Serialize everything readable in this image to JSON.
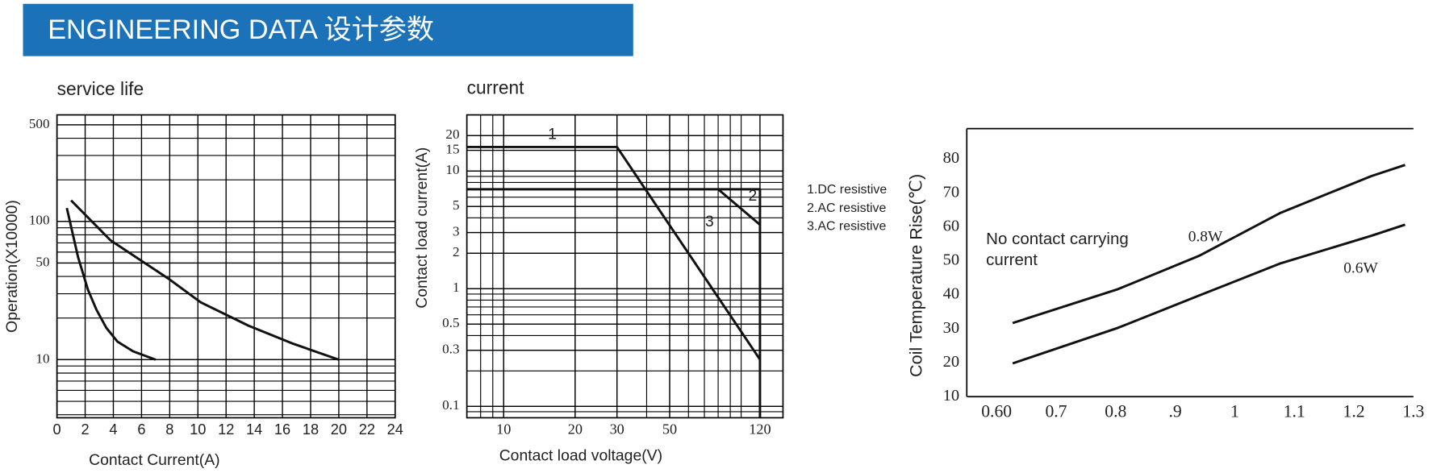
{
  "header": {
    "title": "ENGINEERING DATA 设计参数"
  },
  "chart_data": [
    {
      "type": "line",
      "title": "service life",
      "xlabel": "Contact Current(A)",
      "ylabel": "Operation(X10000)",
      "xscale": "linear",
      "yscale": "log",
      "xlim": [
        0,
        24
      ],
      "ylim": [
        3.8,
        590
      ],
      "xticks": [
        0,
        2,
        4,
        6,
        8,
        10,
        12,
        14,
        16,
        18,
        20,
        22,
        24
      ],
      "yticks": [
        10,
        50,
        100,
        500
      ],
      "grid": true,
      "minor_grid": true,
      "series": [
        {
          "color": "#111111",
          "x": [
            0.7,
            1.5,
            2.2,
            2.8,
            3.5,
            4.3,
            5.4,
            7
          ],
          "values": [
            125,
            55,
            32,
            23,
            17,
            13.5,
            11.5,
            10
          ]
        },
        {
          "color": "#111111",
          "x": [
            1,
            3.8,
            8,
            10.2,
            13.6,
            16.8,
            20
          ],
          "values": [
            142,
            73,
            38,
            26,
            17.6,
            13,
            10
          ]
        }
      ]
    },
    {
      "type": "line",
      "title": "current",
      "xlabel": "Contact load voltage(V)",
      "ylabel": "Contact load current(A)",
      "xscale": "log",
      "yscale": "log",
      "xlim": [
        7,
        150
      ],
      "ylim": [
        0.08,
        30
      ],
      "xticks": [
        10,
        20,
        30,
        50,
        120
      ],
      "yticks": [
        0.1,
        0.3,
        0.5,
        1,
        2,
        3,
        5,
        10,
        15,
        20
      ],
      "grid": true,
      "minor_grid": true,
      "legend": "right",
      "annotations": [
        "1",
        "2",
        "3"
      ],
      "series": [
        {
          "name": "1.DC resistive",
          "color": "#111111",
          "x": [
            7,
            30,
            120
          ],
          "values": [
            16,
            16,
            0.25
          ]
        },
        {
          "name": "2.AC resistive",
          "color": "#111111",
          "x": [
            7,
            120,
            120
          ],
          "values": [
            7,
            7,
            0.08
          ]
        },
        {
          "name": "3.AC resistive",
          "color": "#111111",
          "x": [
            80,
            120
          ],
          "values": [
            7,
            3.5
          ]
        }
      ]
    },
    {
      "type": "line",
      "ylabel": "Coil Temperature Rise(℃)",
      "xscale": "linear",
      "yscale": "linear",
      "xlim": [
        0.55,
        1.3
      ],
      "ylim": [
        10,
        89
      ],
      "xticks": [
        {
          "value": 0.6,
          "label": "0.60"
        },
        0.7,
        0.8,
        {
          "value": 0.9,
          "label": ".9"
        },
        1,
        1.1,
        1.2,
        1.3
      ],
      "yticks": [
        10,
        20,
        30,
        40,
        50,
        60,
        70,
        80
      ],
      "grid": false,
      "series_labels": true,
      "annotations": [
        "No contact carrying",
        "current"
      ],
      "series": [
        {
          "name": "0.8W",
          "color": "#111111",
          "x": [
            0.627,
            0.804,
            0.94,
            1.077,
            1.229,
            1.286
          ],
          "values": [
            31.7,
            41.7,
            51.5,
            64.2,
            75,
            78.3
          ]
        },
        {
          "name": "0.6W",
          "color": "#111111",
          "x": [
            0.627,
            0.804,
            0.94,
            1.077,
            1.229,
            1.286
          ],
          "values": [
            19.8,
            30.3,
            39.8,
            49.3,
            57.4,
            60.7
          ]
        }
      ]
    }
  ]
}
